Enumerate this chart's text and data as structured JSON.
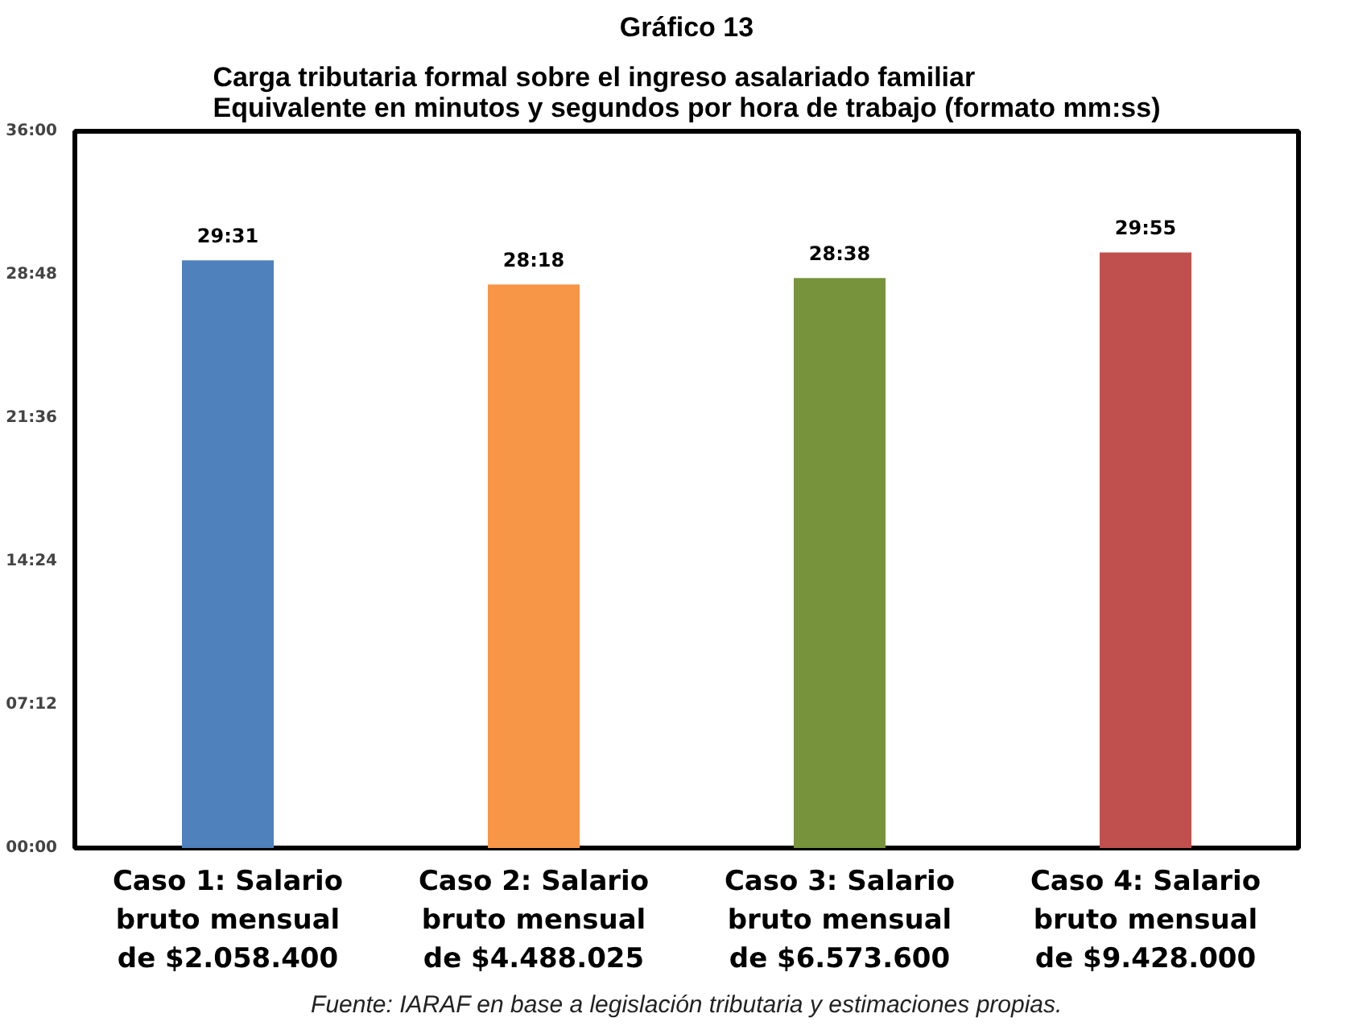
{
  "chart_data": {
    "type": "bar",
    "title": "Gráfico 13",
    "subtitle": "Carga tributaria formal sobre el ingreso asalariado familiar\nEquivalente en minutos y segundos por hora de trabajo (formato mm:ss)",
    "categories": [
      "Caso 1: Salario bruto mensual de $2.058.400",
      "Caso 2: Salario bruto mensual de $4.488.025",
      "Caso 3: Salario bruto mensual de $6.573.600",
      "Caso 4: Salario bruto mensual de $9.428.000"
    ],
    "values": [
      29.517,
      28.3,
      28.633,
      29.917
    ],
    "colors": [
      "#4f81bd",
      "#f79646",
      "#77933c",
      "#c0504d"
    ],
    "value_labels": [
      "29:31",
      "28:18",
      "28:38",
      "29:55"
    ],
    "ylim": [
      0,
      36
    ],
    "yticks": [
      {
        "value": 0,
        "label": "00:00"
      },
      {
        "value": 7.2,
        "label": "07:12"
      },
      {
        "value": 14.4,
        "label": "14:24"
      },
      {
        "value": 21.6,
        "label": "21:36"
      },
      {
        "value": 28.8,
        "label": "28:48"
      },
      {
        "value": 36,
        "label": "36:00"
      }
    ],
    "grid": false,
    "annotations": [
      "Fuente: IARAF en base a legislación tributaria y estimaciones propias."
    ]
  }
}
